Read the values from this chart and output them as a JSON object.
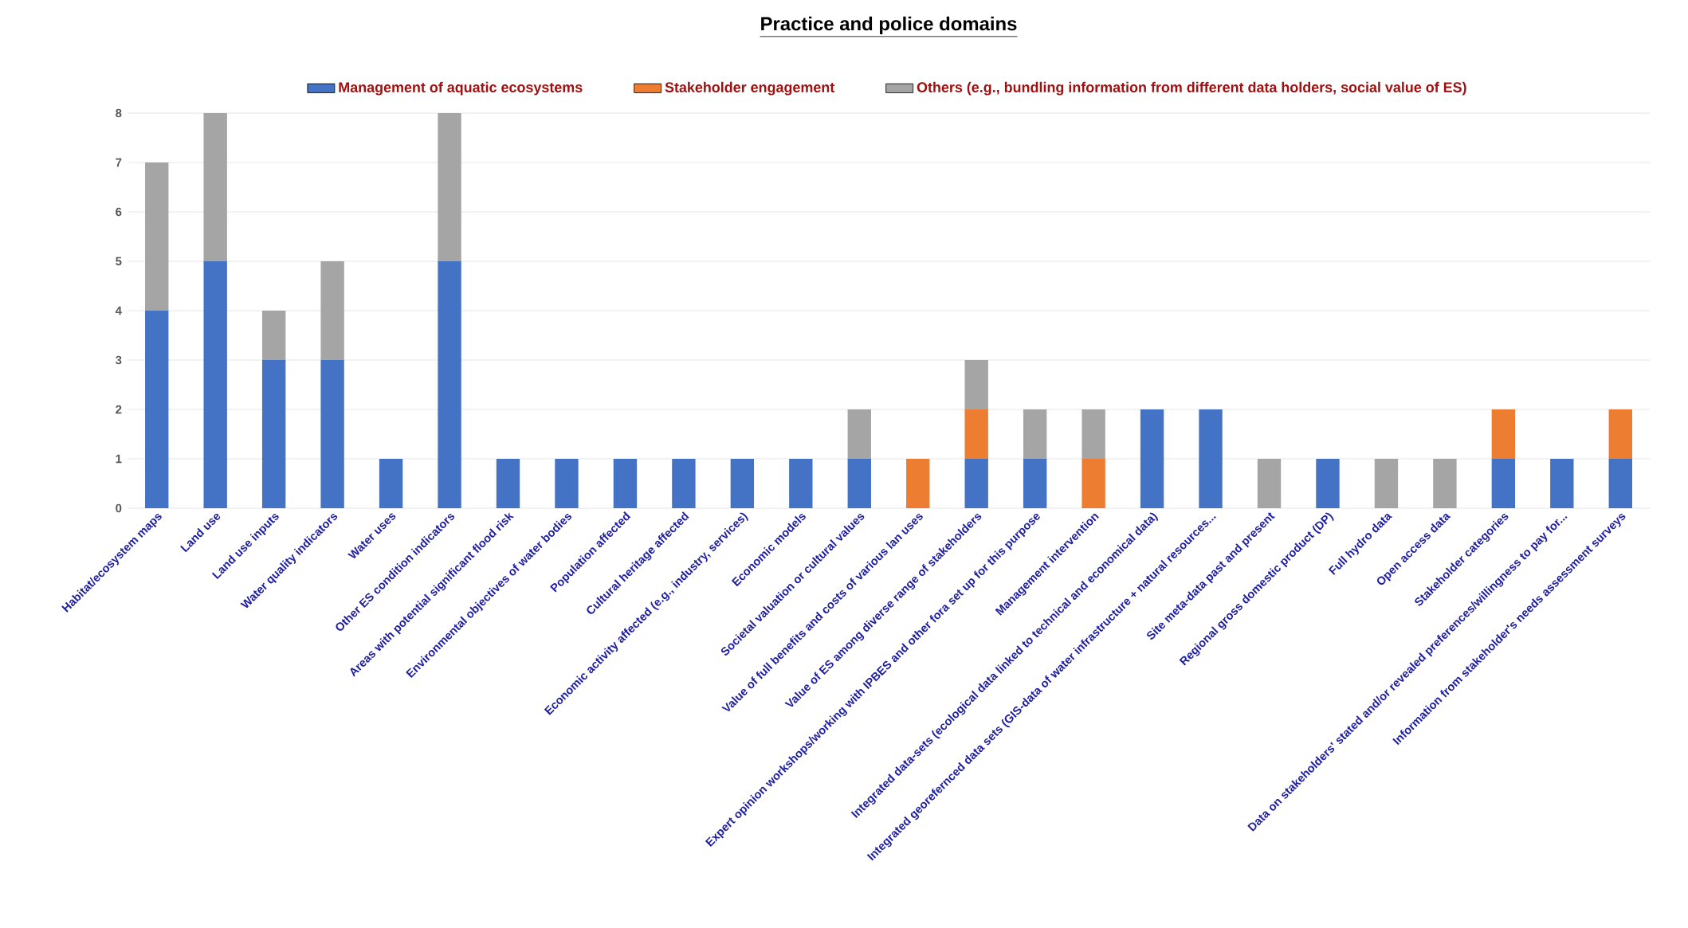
{
  "chart_data": {
    "type": "bar",
    "stacked": true,
    "title": "Practice and police domains",
    "categories": [
      "Habitat/ecosystem maps",
      "Land use",
      "Land use inputs",
      "Water quality indicators",
      "Water uses",
      "Other ES condition indicators",
      "Areas with potential significant flood risk",
      "Environmental objectives of water bodies",
      "Population affected",
      "Cultural heritage affected",
      "Economic activity affected (e.g., industry, services)",
      "Economic models",
      "Societal valuation or cultural values",
      "Value of full  benefits and costs of various lan uses",
      "Value of ES among diverse range of stakeholders",
      "Expert opinion workshops/working with IPBES and other fora set up for this purpose",
      "Management intervention",
      "Integrated data-sets (ecological data linked to technical and economical data)",
      "Integrated georefernced data sets (GIS-data of water infrastructure + natural resources...",
      "Site meta-data past and present",
      "Regional gross domestic product (DP)",
      "Full hydro data",
      "Open access data",
      "Stakeholder categories",
      "Data on stakeholders' stated and/or revealed preferences/willingness to pay for...",
      "Information from stakeholder's needs assessment surveys"
    ],
    "series": [
      {
        "name": "Management of aquatic ecosystems",
        "color": "#4472c4",
        "values": [
          4,
          5,
          3,
          3,
          1,
          5,
          1,
          1,
          1,
          1,
          1,
          1,
          1,
          0,
          1,
          1,
          0,
          2,
          2,
          0,
          1,
          0,
          0,
          1,
          1,
          1
        ]
      },
      {
        "name": "Stakeholder engagement",
        "color": "#ed7d31",
        "values": [
          0,
          0,
          0,
          0,
          0,
          0,
          0,
          0,
          0,
          0,
          0,
          0,
          0,
          1,
          1,
          0,
          1,
          0,
          0,
          0,
          0,
          0,
          0,
          1,
          0,
          1
        ]
      },
      {
        "name": "Others (e.g., bundling information from different data holders, social value of ES)",
        "color": "#a5a5a5",
        "values": [
          3,
          3,
          1,
          2,
          0,
          3,
          0,
          0,
          0,
          0,
          0,
          0,
          1,
          0,
          1,
          1,
          1,
          0,
          0,
          1,
          0,
          1,
          1,
          0,
          0,
          0
        ]
      }
    ],
    "ylim": [
      0,
      8
    ],
    "yticks": [
      0,
      1,
      2,
      3,
      4,
      5,
      6,
      7,
      8
    ],
    "grid": "y",
    "legend": "top"
  }
}
